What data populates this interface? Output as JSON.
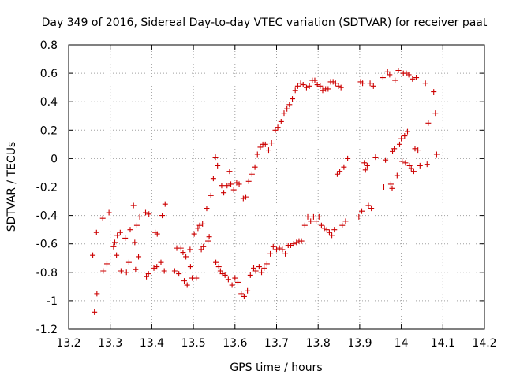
{
  "chart_data": {
    "type": "scatter",
    "title": "Day 349 of 2016, Sidereal Day-to-day VTEC variation (SDTVAR) for receiver paat",
    "xlabel": "GPS time / hours",
    "ylabel": "SDTVAR / TECUs",
    "xlim": [
      13.2,
      14.2
    ],
    "ylim": [
      -1.2,
      0.8
    ],
    "xticks": [
      13.2,
      13.3,
      13.4,
      13.5,
      13.6,
      13.7,
      13.8,
      13.9,
      14.0,
      14.1,
      14.2
    ],
    "xtick_labels": [
      "13.2",
      "13.3",
      "13.4",
      "13.5",
      "13.6",
      "13.7",
      "13.8",
      "13.9",
      "14",
      "14.1",
      "14.2"
    ],
    "yticks": [
      -1.2,
      -1.0,
      -0.8,
      -0.6,
      -0.4,
      -0.2,
      0,
      0.2,
      0.4,
      0.6,
      0.8
    ],
    "ytick_labels": [
      "-1.2",
      "-1",
      "-0.8",
      "-0.6",
      "-0.4",
      "-0.2",
      "0",
      "0.2",
      "0.4",
      "0.6",
      "0.8"
    ],
    "grid": true,
    "marker": "+",
    "color": "#cc0000",
    "series": [
      {
        "name": "SDTVAR",
        "points": [
          [
            13.258,
            -0.68
          ],
          [
            13.262,
            -1.08
          ],
          [
            13.267,
            -0.52
          ],
          [
            13.268,
            -0.95
          ],
          [
            13.282,
            -0.42
          ],
          [
            13.283,
            -0.79
          ],
          [
            13.292,
            -0.74
          ],
          [
            13.297,
            -0.38
          ],
          [
            13.308,
            -0.62
          ],
          [
            13.311,
            -0.59
          ],
          [
            13.315,
            -0.68
          ],
          [
            13.317,
            -0.54
          ],
          [
            13.324,
            -0.52
          ],
          [
            13.326,
            -0.79
          ],
          [
            13.336,
            -0.56
          ],
          [
            13.339,
            -0.8
          ],
          [
            13.345,
            -0.73
          ],
          [
            13.348,
            -0.5
          ],
          [
            13.356,
            -0.33
          ],
          [
            13.359,
            -0.59
          ],
          [
            13.361,
            -0.78
          ],
          [
            13.364,
            -0.47
          ],
          [
            13.368,
            -0.69
          ],
          [
            13.371,
            -0.41
          ],
          [
            13.385,
            -0.38
          ],
          [
            13.387,
            -0.83
          ],
          [
            13.392,
            -0.81
          ],
          [
            13.393,
            -0.39
          ],
          [
            13.405,
            -0.77
          ],
          [
            13.408,
            -0.52
          ],
          [
            13.412,
            -0.76
          ],
          [
            13.413,
            -0.53
          ],
          [
            13.422,
            -0.73
          ],
          [
            13.425,
            -0.4
          ],
          [
            13.43,
            -0.79
          ],
          [
            13.432,
            -0.32
          ],
          [
            13.455,
            -0.79
          ],
          [
            13.46,
            -0.63
          ],
          [
            13.465,
            -0.81
          ],
          [
            13.47,
            -0.63
          ],
          [
            13.475,
            -0.66
          ],
          [
            13.478,
            -0.86
          ],
          [
            13.482,
            -0.69
          ],
          [
            13.485,
            -0.89
          ],
          [
            13.492,
            -0.64
          ],
          [
            13.493,
            -0.76
          ],
          [
            13.497,
            -0.84
          ],
          [
            13.502,
            -0.53
          ],
          [
            13.507,
            -0.84
          ],
          [
            13.511,
            -0.49
          ],
          [
            13.515,
            -0.47
          ],
          [
            13.519,
            -0.64
          ],
          [
            13.522,
            -0.46
          ],
          [
            13.524,
            -0.62
          ],
          [
            13.532,
            -0.35
          ],
          [
            13.535,
            -0.58
          ],
          [
            13.538,
            -0.55
          ],
          [
            13.542,
            -0.26
          ],
          [
            13.548,
            -0.14
          ],
          [
            13.553,
            0.01
          ],
          [
            13.554,
            -0.73
          ],
          [
            13.558,
            -0.05
          ],
          [
            13.561,
            -0.76
          ],
          [
            13.565,
            -0.79
          ],
          [
            13.568,
            -0.19
          ],
          [
            13.57,
            -0.81
          ],
          [
            13.573,
            -0.24
          ],
          [
            13.576,
            -0.82
          ],
          [
            13.581,
            -0.19
          ],
          [
            13.584,
            -0.85
          ],
          [
            13.587,
            -0.09
          ],
          [
            13.59,
            -0.18
          ],
          [
            13.593,
            -0.89
          ],
          [
            13.597,
            -0.22
          ],
          [
            13.6,
            -0.84
          ],
          [
            13.604,
            -0.17
          ],
          [
            13.607,
            -0.87
          ],
          [
            13.61,
            -0.18
          ],
          [
            13.615,
            -0.95
          ],
          [
            13.62,
            -0.28
          ],
          [
            13.622,
            -0.97
          ],
          [
            13.626,
            -0.27
          ],
          [
            13.63,
            -0.93
          ],
          [
            13.633,
            -0.16
          ],
          [
            13.637,
            -0.82
          ],
          [
            13.641,
            -0.11
          ],
          [
            13.645,
            -0.77
          ],
          [
            13.648,
            -0.06
          ],
          [
            13.65,
            -0.79
          ],
          [
            13.654,
            0.03
          ],
          [
            13.658,
            -0.76
          ],
          [
            13.661,
            0.08
          ],
          [
            13.664,
            -0.8
          ],
          [
            13.667,
            0.1
          ],
          [
            13.67,
            -0.77
          ],
          [
            13.673,
            0.1
          ],
          [
            13.677,
            -0.74
          ],
          [
            13.681,
            0.06
          ],
          [
            13.685,
            -0.67
          ],
          [
            13.688,
            0.11
          ],
          [
            13.692,
            -0.62
          ],
          [
            13.697,
            0.2
          ],
          [
            13.7,
            -0.64
          ],
          [
            13.703,
            0.22
          ],
          [
            13.707,
            -0.63
          ],
          [
            13.711,
            0.26
          ],
          [
            13.714,
            -0.64
          ],
          [
            13.718,
            0.32
          ],
          [
            13.721,
            -0.67
          ],
          [
            13.725,
            0.35
          ],
          [
            13.728,
            -0.61
          ],
          [
            13.731,
            0.38
          ],
          [
            13.734,
            -0.61
          ],
          [
            13.738,
            0.42
          ],
          [
            13.741,
            -0.6
          ],
          [
            13.745,
            0.48
          ],
          [
            13.748,
            -0.59
          ],
          [
            13.751,
            0.51
          ],
          [
            13.754,
            -0.58
          ],
          [
            13.758,
            0.53
          ],
          [
            13.76,
            -0.58
          ],
          [
            13.764,
            0.52
          ],
          [
            13.768,
            -0.47
          ],
          [
            13.772,
            0.5
          ],
          [
            13.775,
            -0.41
          ],
          [
            13.779,
            0.51
          ],
          [
            13.782,
            -0.44
          ],
          [
            13.786,
            0.55
          ],
          [
            13.789,
            -0.41
          ],
          [
            13.792,
            0.55
          ],
          [
            13.795,
            -0.44
          ],
          [
            13.798,
            0.52
          ],
          [
            13.802,
            -0.41
          ],
          [
            13.805,
            0.51
          ],
          [
            13.808,
            -0.47
          ],
          [
            13.811,
            0.48
          ],
          [
            13.815,
            -0.49
          ],
          [
            13.818,
            0.49
          ],
          [
            13.821,
            -0.5
          ],
          [
            13.824,
            0.49
          ],
          [
            13.827,
            -0.52
          ],
          [
            13.83,
            0.54
          ],
          [
            13.833,
            -0.54
          ],
          [
            13.836,
            0.54
          ],
          [
            13.839,
            -0.5
          ],
          [
            13.842,
            0.53
          ],
          [
            13.846,
            -0.11
          ],
          [
            13.849,
            0.51
          ],
          [
            13.852,
            -0.09
          ],
          [
            13.855,
            0.5
          ],
          [
            13.858,
            -0.47
          ],
          [
            13.862,
            -0.06
          ],
          [
            13.866,
            -0.44
          ],
          [
            13.871,
            0.0
          ],
          [
            13.898,
            -0.41
          ],
          [
            13.902,
            0.54
          ],
          [
            13.905,
            -0.37
          ],
          [
            13.907,
            0.53
          ],
          [
            13.911,
            -0.03
          ],
          [
            13.914,
            -0.08
          ],
          [
            13.918,
            -0.05
          ],
          [
            13.921,
            -0.33
          ],
          [
            13.925,
            0.53
          ],
          [
            13.928,
            -0.35
          ],
          [
            13.933,
            0.51
          ],
          [
            13.938,
            0.01
          ],
          [
            13.956,
            0.57
          ],
          [
            13.958,
            -0.2
          ],
          [
            13.962,
            -0.01
          ],
          [
            13.967,
            0.61
          ],
          [
            13.972,
            0.59
          ],
          [
            13.975,
            -0.18
          ],
          [
            13.978,
            -0.21
          ],
          [
            13.979,
            0.05
          ],
          [
            13.983,
            0.07
          ],
          [
            13.985,
            0.55
          ],
          [
            13.99,
            -0.12
          ],
          [
            13.993,
            0.62
          ],
          [
            13.996,
            0.1
          ],
          [
            14.0,
            0.14
          ],
          [
            14.002,
            -0.02
          ],
          [
            14.005,
            0.6
          ],
          [
            14.008,
            0.16
          ],
          [
            14.01,
            -0.03
          ],
          [
            14.012,
            0.6
          ],
          [
            14.015,
            0.19
          ],
          [
            14.018,
            0.59
          ],
          [
            14.02,
            -0.05
          ],
          [
            14.024,
            -0.07
          ],
          [
            14.027,
            0.56
          ],
          [
            14.03,
            -0.09
          ],
          [
            14.033,
            0.07
          ],
          [
            14.036,
            0.57
          ],
          [
            14.04,
            0.06
          ],
          [
            14.045,
            -0.05
          ],
          [
            14.058,
            0.53
          ],
          [
            14.062,
            -0.04
          ],
          [
            14.065,
            0.25
          ],
          [
            14.078,
            0.47
          ],
          [
            14.082,
            0.32
          ],
          [
            14.085,
            0.03
          ]
        ]
      }
    ]
  }
}
